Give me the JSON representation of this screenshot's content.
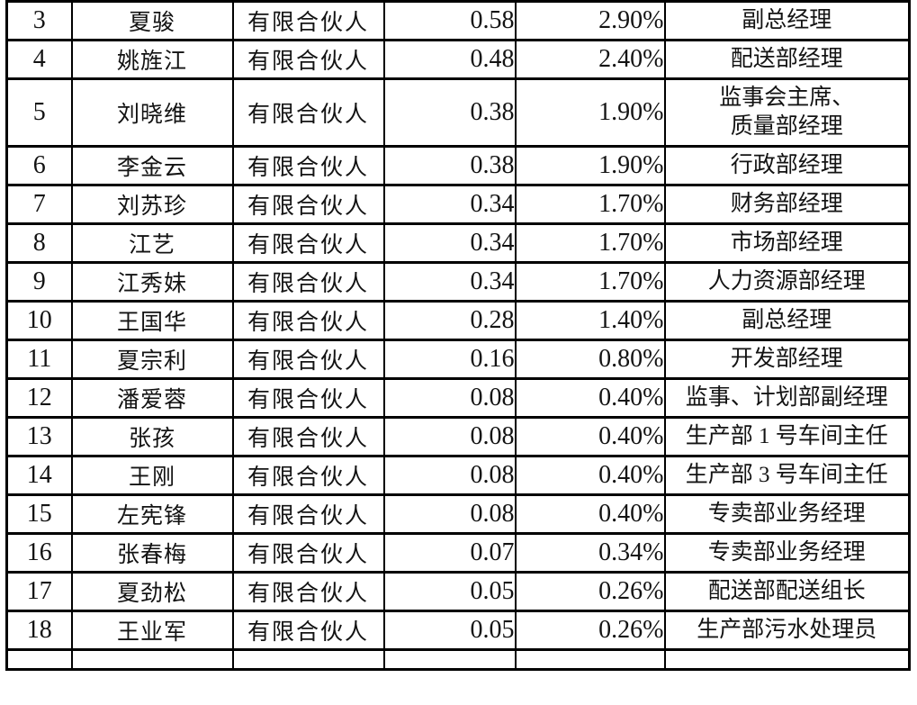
{
  "table": {
    "partner_type_label": "有限合伙人",
    "rows": [
      {
        "no": "3",
        "name": "夏骏",
        "partner_type": "有限合伙人",
        "amount": "0.58",
        "ratio": "2.90%",
        "position": "副总经理"
      },
      {
        "no": "4",
        "name": "姚旌江",
        "partner_type": "有限合伙人",
        "amount": "0.48",
        "ratio": "2.40%",
        "position": "配送部经理"
      },
      {
        "no": "5",
        "name": "刘晓维",
        "partner_type": "有限合伙人",
        "amount": "0.38",
        "ratio": "1.90%",
        "position": "监事会主席、\n质量部经理"
      },
      {
        "no": "6",
        "name": "李金云",
        "partner_type": "有限合伙人",
        "amount": "0.38",
        "ratio": "1.90%",
        "position": "行政部经理"
      },
      {
        "no": "7",
        "name": "刘苏珍",
        "partner_type": "有限合伙人",
        "amount": "0.34",
        "ratio": "1.70%",
        "position": "财务部经理"
      },
      {
        "no": "8",
        "name": "江艺",
        "partner_type": "有限合伙人",
        "amount": "0.34",
        "ratio": "1.70%",
        "position": "市场部经理"
      },
      {
        "no": "9",
        "name": "江秀妹",
        "partner_type": "有限合伙人",
        "amount": "0.34",
        "ratio": "1.70%",
        "position": "人力资源部经理"
      },
      {
        "no": "10",
        "name": "王国华",
        "partner_type": "有限合伙人",
        "amount": "0.28",
        "ratio": "1.40%",
        "position": "副总经理"
      },
      {
        "no": "11",
        "name": "夏宗利",
        "partner_type": "有限合伙人",
        "amount": "0.16",
        "ratio": "0.80%",
        "position": "开发部经理"
      },
      {
        "no": "12",
        "name": "潘爱蓉",
        "partner_type": "有限合伙人",
        "amount": "0.08",
        "ratio": "0.40%",
        "position": "监事、计划部副经理"
      },
      {
        "no": "13",
        "name": "张孩",
        "partner_type": "有限合伙人",
        "amount": "0.08",
        "ratio": "0.40%",
        "position": "生产部 1 号车间主任"
      },
      {
        "no": "14",
        "name": "王刚",
        "partner_type": "有限合伙人",
        "amount": "0.08",
        "ratio": "0.40%",
        "position": "生产部 3 号车间主任"
      },
      {
        "no": "15",
        "name": "左宪锋",
        "partner_type": "有限合伙人",
        "amount": "0.08",
        "ratio": "0.40%",
        "position": "专卖部业务经理"
      },
      {
        "no": "16",
        "name": "张春梅",
        "partner_type": "有限合伙人",
        "amount": "0.07",
        "ratio": "0.34%",
        "position": "专卖部业务经理"
      },
      {
        "no": "17",
        "name": "夏劲松",
        "partner_type": "有限合伙人",
        "amount": "0.05",
        "ratio": "0.26%",
        "position": "配送部配送组长"
      },
      {
        "no": "18",
        "name": "王业军",
        "partner_type": "有限合伙人",
        "amount": "0.05",
        "ratio": "0.26%",
        "position": "生产部污水处理员"
      }
    ]
  }
}
